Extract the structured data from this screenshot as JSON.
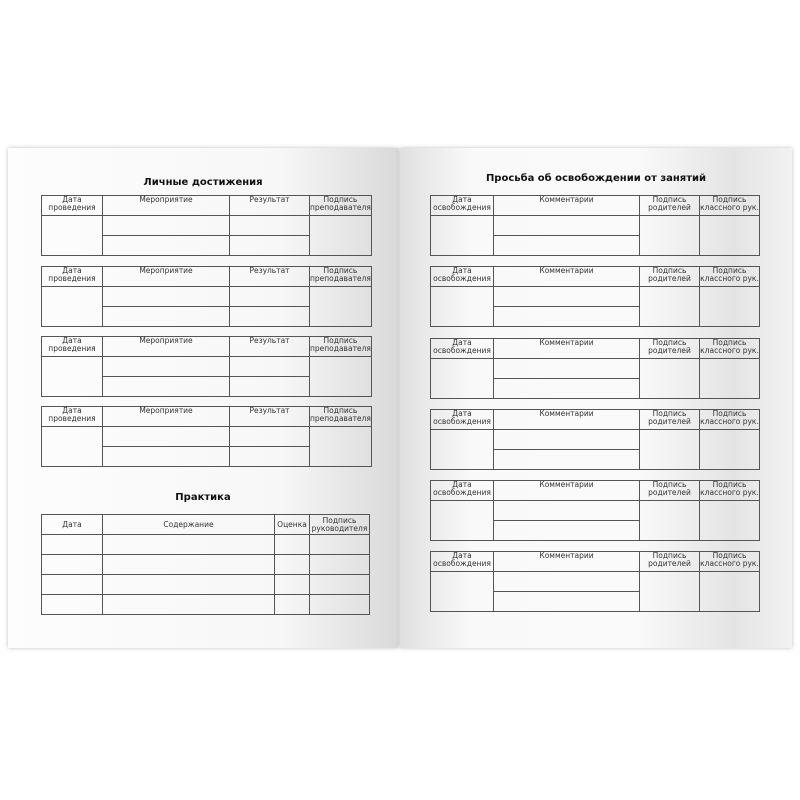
{
  "left_page": {
    "title": "Личные достижения",
    "achievement_headers": [
      "Дата проведения",
      "Мероприятие",
      "Результат",
      "Подпись преподавателя"
    ],
    "achievement_table_count": 4,
    "practice": {
      "title": "Практика",
      "headers": [
        "Дата",
        "Содержание",
        "Оценка",
        "Подпись руководителя"
      ],
      "rows": 4
    }
  },
  "right_page": {
    "title": "Просьба об освобождении от занятий",
    "headers": [
      "Дата освобождения",
      "Комментарии",
      "Подпись родителей",
      "Подпись классного рук."
    ],
    "table_count": 6
  }
}
